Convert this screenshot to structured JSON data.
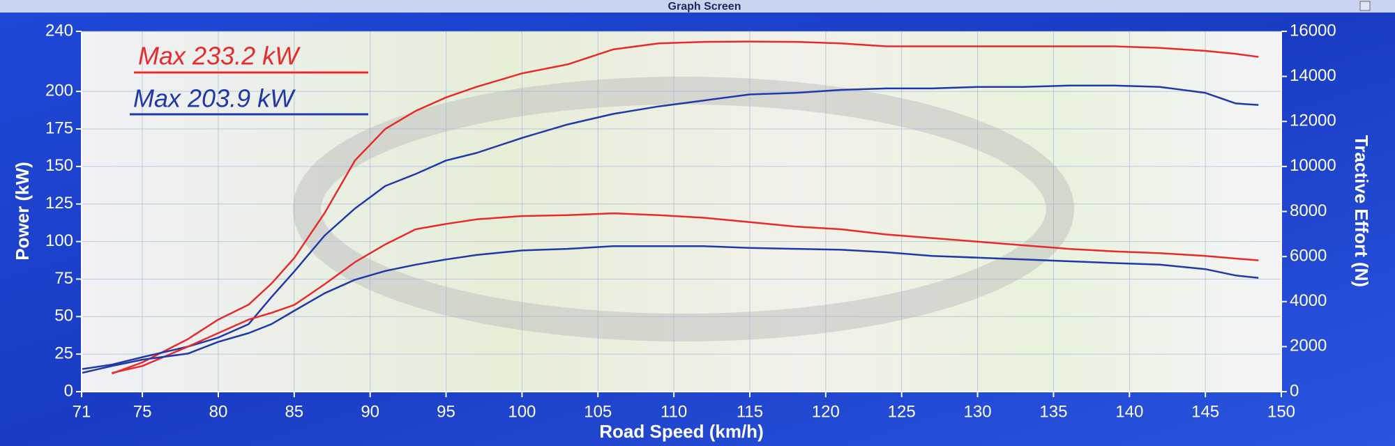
{
  "chart_data": {
    "type": "line",
    "title": "Graph Screen",
    "xlabel": "Road Speed (km/h)",
    "ylabel": "Power (kW)",
    "y2label": "Tractive Effort (N)",
    "annotations": [
      "Max 233.2 kW",
      "Max 203.9 kW"
    ],
    "annotation_colors": [
      "#e82a2a",
      "#2038a8"
    ],
    "x": [
      71,
      73,
      75,
      78,
      80,
      82,
      83.5,
      85,
      87,
      89,
      91,
      93,
      95,
      97,
      100,
      103,
      106,
      109,
      112,
      115,
      118,
      121,
      124,
      127,
      130,
      133,
      136,
      139,
      142,
      145,
      147,
      148.5
    ],
    "series": [
      {
        "color": "#e82a2a",
        "values": [
          null,
          12,
          19.5,
          35,
          48,
          58,
          72,
          89,
          119,
          154,
          175,
          187,
          196,
          203,
          212,
          218,
          228,
          232,
          233,
          233.2,
          233,
          232,
          230,
          230,
          230,
          230,
          230,
          230,
          229,
          227,
          225,
          223
        ]
      },
      {
        "color": "#2038a8",
        "values": [
          15,
          18,
          23,
          30,
          36,
          45,
          63,
          80,
          104,
          122,
          137,
          145,
          154,
          159,
          169,
          178,
          185,
          190,
          194,
          198,
          199,
          201,
          202,
          202,
          203,
          203,
          203.9,
          203.9,
          203,
          199,
          192,
          191
        ]
      },
      {
        "color": "#e82a2a",
        "axis": "y2",
        "values": [
          null,
          830,
          1140,
          2000,
          2600,
          3200,
          3500,
          3850,
          4770,
          5750,
          6540,
          7210,
          7450,
          7650,
          7800,
          7840,
          7920,
          7840,
          7720,
          7530,
          7330,
          7210,
          6980,
          6820,
          6660,
          6500,
          6340,
          6230,
          6150,
          6030,
          5910,
          5830
        ]
      },
      {
        "color": "#2038a8",
        "axis": "y2",
        "values": [
          830,
          1140,
          1420,
          1690,
          2210,
          2600,
          3000,
          3590,
          4370,
          4970,
          5360,
          5640,
          5870,
          6070,
          6270,
          6340,
          6460,
          6460,
          6460,
          6380,
          6340,
          6300,
          6190,
          6030,
          5950,
          5870,
          5790,
          5710,
          5640,
          5440,
          5160,
          5050
        ]
      }
    ],
    "xlim": [
      71,
      150
    ],
    "xticks": [
      71,
      75,
      80,
      85,
      90,
      95,
      100,
      105,
      110,
      115,
      120,
      125,
      130,
      135,
      140,
      145,
      150
    ],
    "ylim": [
      0,
      240
    ],
    "yticks": [
      0,
      25,
      50,
      75,
      100,
      125,
      150,
      175,
      200,
      240
    ],
    "y2lim": [
      0,
      16000
    ],
    "y2ticks": [
      0,
      2000,
      4000,
      6000,
      8000,
      10000,
      12000,
      14000,
      16000
    ],
    "grid": true
  }
}
